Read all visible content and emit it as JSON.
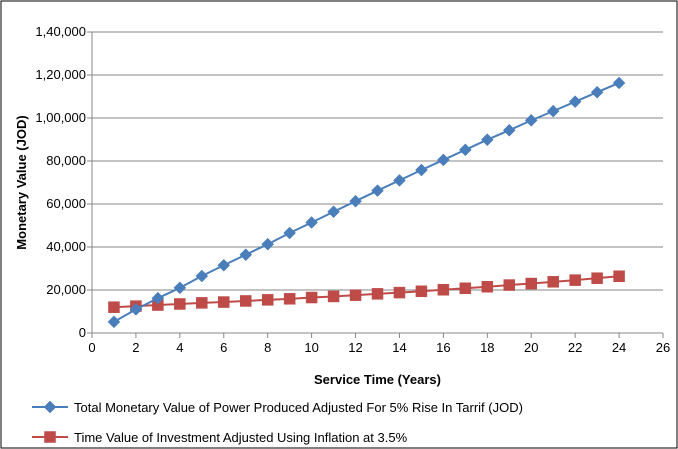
{
  "chart_data": {
    "type": "line",
    "title": "",
    "xlabel": "Service Time (Years)",
    "ylabel": "Monetary Value (JOD)",
    "xlim": [
      0,
      26
    ],
    "ylim": [
      0,
      140000
    ],
    "x_ticks": [
      0,
      2,
      4,
      6,
      8,
      10,
      12,
      14,
      16,
      18,
      20,
      22,
      24,
      26
    ],
    "y_ticks": [
      0,
      20000,
      40000,
      60000,
      80000,
      100000,
      120000,
      140000
    ],
    "y_tick_labels": [
      "0",
      "20,000",
      "40,000",
      "60,000",
      "80,000",
      "1,00,000",
      "1,20,000",
      "1,40,000"
    ],
    "grid": "horizontal",
    "legend_position": "bottom",
    "series": [
      {
        "name": "Total Monetary Value of Power Produced Adjusted For 5% Rise In Tarrif (JOD)",
        "color": "#4a7ebb",
        "marker": "diamond",
        "x": [
          1,
          2,
          3,
          4,
          5,
          6,
          7,
          8,
          9,
          10,
          11,
          12,
          13,
          14,
          15,
          16,
          17,
          18,
          19,
          20,
          21,
          22,
          23,
          24
        ],
        "values": [
          5200,
          11000,
          16200,
          21000,
          26500,
          31500,
          36400,
          41300,
          46500,
          51400,
          56400,
          61300,
          66200,
          71000,
          75800,
          80500,
          85200,
          89900,
          94300,
          98900,
          103200,
          107600,
          112000,
          116300
        ]
      },
      {
        "name": "Time Value of Investment Adjusted Using Inflation at 3.5%",
        "color": "#be4b48",
        "marker": "square",
        "x": [
          1,
          2,
          3,
          4,
          5,
          6,
          7,
          8,
          9,
          10,
          11,
          12,
          13,
          14,
          15,
          16,
          17,
          18,
          19,
          20,
          21,
          22,
          23,
          24
        ],
        "values": [
          12000,
          12500,
          13000,
          13500,
          14000,
          14400,
          14900,
          15400,
          15900,
          16500,
          17000,
          17600,
          18200,
          18800,
          19400,
          20100,
          20800,
          21500,
          22300,
          23000,
          23800,
          24600,
          25500,
          26400
        ]
      }
    ]
  }
}
